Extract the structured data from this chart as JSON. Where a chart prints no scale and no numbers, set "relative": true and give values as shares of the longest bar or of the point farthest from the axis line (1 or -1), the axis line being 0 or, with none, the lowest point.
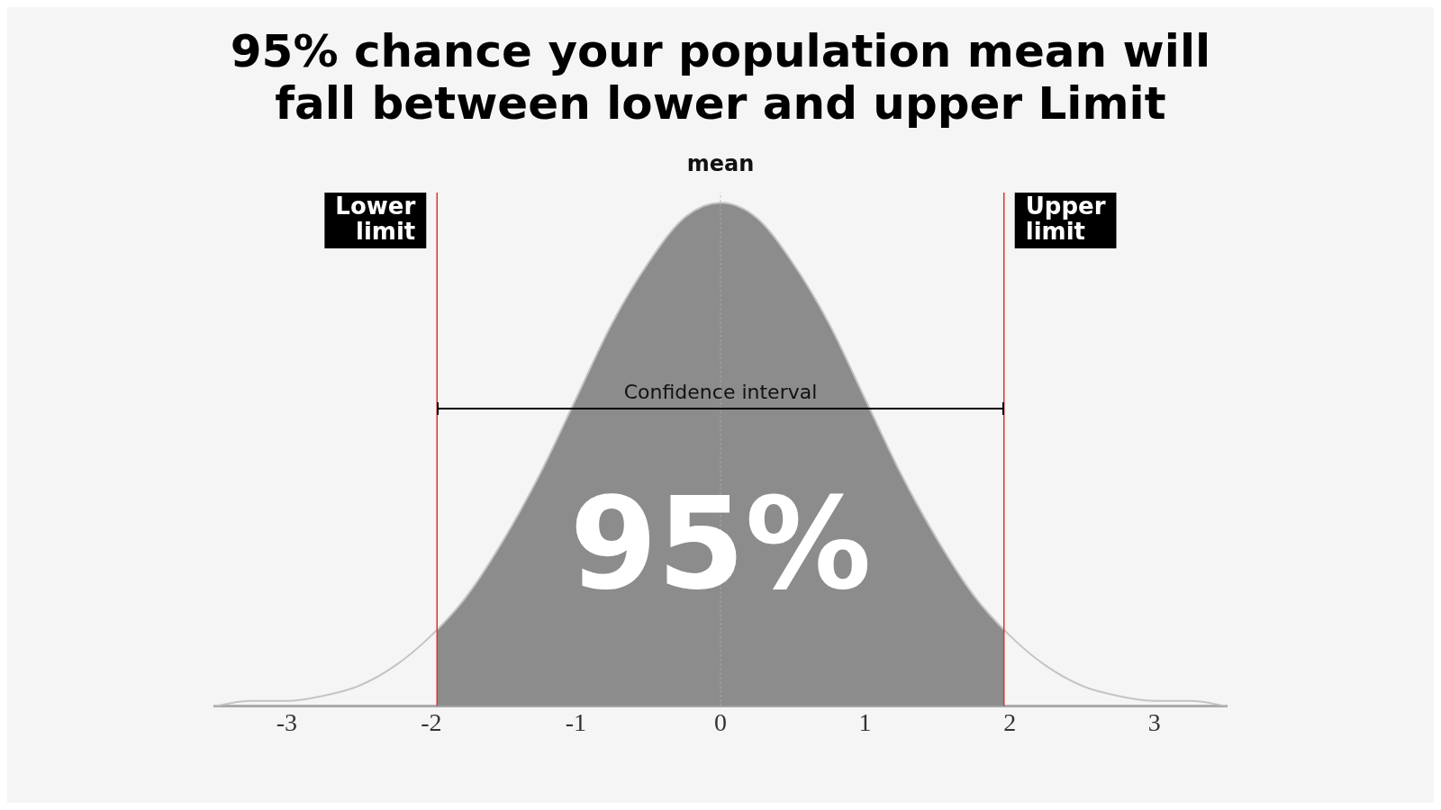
{
  "chart_data": {
    "type": "area",
    "title": "95% chance your population mean will fall between lower and upper Limit",
    "relative": true,
    "legend": false,
    "grid": false,
    "xlim": [
      -3.5,
      3.5
    ],
    "xticks": [
      -3,
      -2,
      -1,
      0,
      1,
      2,
      3
    ],
    "series": [
      {
        "type": "line",
        "color": "#c4c4c4",
        "x": [
          -3.5,
          -3.25,
          -3,
          -2.75,
          -2.5,
          -2.25,
          -2,
          -1.75,
          -1.5,
          -1.25,
          -1,
          -0.75,
          -0.5,
          -0.25,
          0,
          0.25,
          0.5,
          0.75,
          1,
          1.25,
          1.5,
          1.75,
          2,
          2.25,
          2.5,
          2.75,
          3,
          3.25,
          3.5
        ],
        "values": [
          0.0,
          0.01,
          0.01,
          0.02,
          0.04,
          0.08,
          0.14,
          0.22,
          0.33,
          0.46,
          0.61,
          0.76,
          0.88,
          0.97,
          1.0,
          0.97,
          0.88,
          0.76,
          0.61,
          0.46,
          0.33,
          0.22,
          0.14,
          0.08,
          0.04,
          0.02,
          0.01,
          0.01,
          0.0
        ]
      },
      {
        "type": "area",
        "color": "#8c8c8c",
        "x": [
          -1.96,
          -1.75,
          -1.5,
          -1.25,
          -1,
          -0.75,
          -0.5,
          -0.25,
          0,
          0.25,
          0.5,
          0.75,
          1,
          1.25,
          1.5,
          1.75,
          1.96
        ],
        "values": [
          0.15,
          0.22,
          0.33,
          0.46,
          0.61,
          0.76,
          0.88,
          0.97,
          1.0,
          0.97,
          0.88,
          0.76,
          0.61,
          0.46,
          0.33,
          0.22,
          0.15
        ]
      }
    ],
    "ref_lines": [
      {
        "axis": "x",
        "value": -1.96,
        "label": "Lower limit",
        "color": "#e03030",
        "line_style": "solid"
      },
      {
        "axis": "x",
        "value": 1.96,
        "label": "Upper limit",
        "color": "#e03030",
        "line_style": "solid"
      },
      {
        "axis": "x",
        "value": 0,
        "label": "mean",
        "color": "#b0b0b0",
        "line_style": "dotted"
      }
    ],
    "annotations": [
      {
        "text": "Confidence interval",
        "x": 0,
        "y": 0.59
      },
      {
        "text": "95%",
        "x": 0,
        "y": 0.3
      }
    ]
  }
}
